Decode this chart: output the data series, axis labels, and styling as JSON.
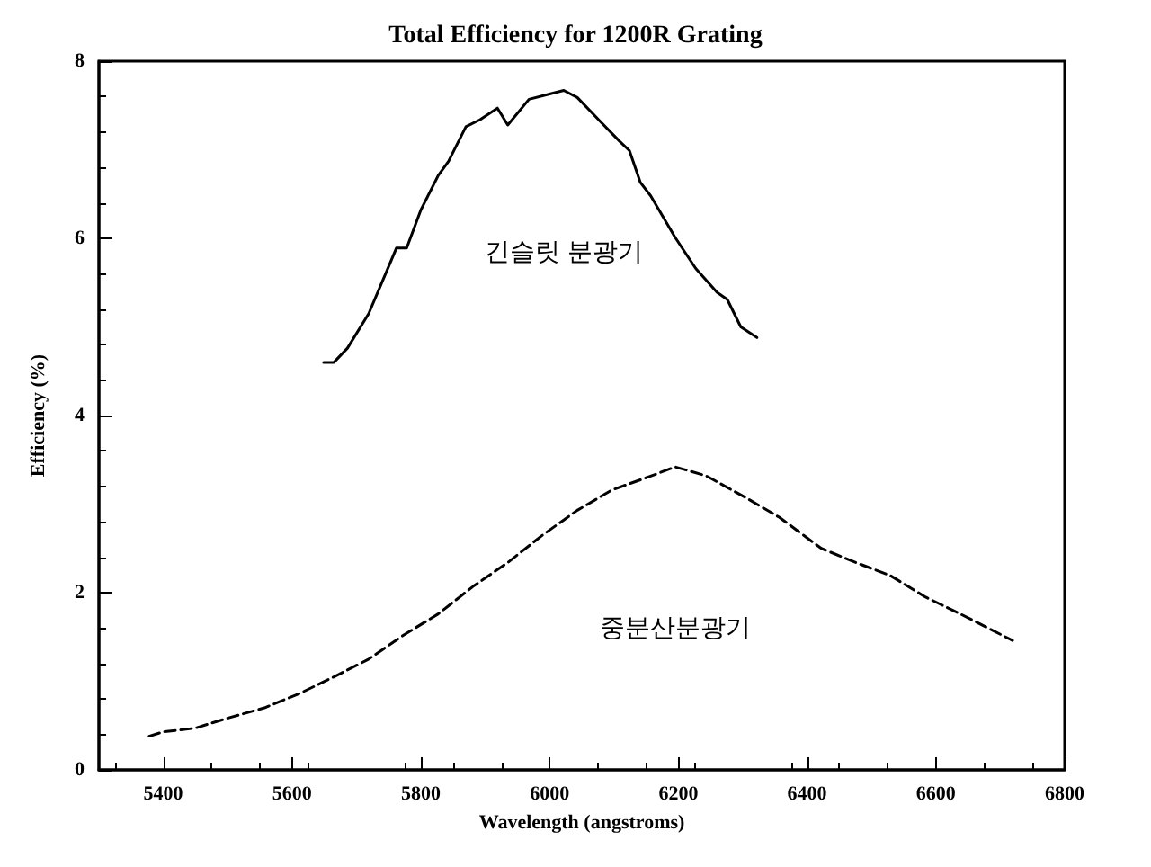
{
  "chart_data": {
    "type": "line",
    "title": "Total Efficiency for 1200R Grating",
    "xlabel": "Wavelength (angstroms)",
    "ylabel": "Efficiency (%)",
    "xlim": [
      5300,
      6800
    ],
    "xticks": [
      5400,
      5600,
      5800,
      6000,
      6200,
      6400,
      6600,
      6800
    ],
    "ylim": [
      0,
      8
    ],
    "yticks": [
      0,
      2,
      4,
      6,
      8
    ],
    "grid": false,
    "marker": "none",
    "series": [
      {
        "color": "#000000",
        "line_style": "solid",
        "x": [
          5649,
          5665,
          5686,
          5719,
          5751,
          5762,
          5778,
          5800,
          5827,
          5843,
          5870,
          5892,
          5919,
          5935,
          5968,
          6000,
          6022,
          6043,
          6076,
          6108,
          6124,
          6141,
          6157,
          6195,
          6227,
          6260,
          6276,
          6297,
          6322
        ],
        "values": [
          4.6,
          4.6,
          4.76,
          5.15,
          5.7,
          5.89,
          5.89,
          6.32,
          6.71,
          6.87,
          7.26,
          7.34,
          7.47,
          7.28,
          7.57,
          7.63,
          7.67,
          7.59,
          7.34,
          7.1,
          6.99,
          6.63,
          6.48,
          6.01,
          5.66,
          5.39,
          5.31,
          5.0,
          4.88
        ]
      },
      {
        "color": "#000000",
        "line_style": "dashed",
        "x": [
          5378,
          5400,
          5449,
          5503,
          5557,
          5611,
          5665,
          5719,
          5773,
          5827,
          5881,
          5935,
          5989,
          6043,
          6097,
          6151,
          6195,
          6243,
          6303,
          6357,
          6422,
          6476,
          6530,
          6584,
          6638,
          6719
        ],
        "values": [
          0.38,
          0.43,
          0.47,
          0.59,
          0.7,
          0.86,
          1.05,
          1.25,
          1.52,
          1.76,
          2.07,
          2.34,
          2.65,
          2.93,
          3.16,
          3.3,
          3.42,
          3.32,
          3.08,
          2.85,
          2.5,
          2.34,
          2.19,
          1.95,
          1.76,
          1.46
        ]
      }
    ],
    "annotations": [
      "긴슬릿 분광기",
      "중분산분광기"
    ]
  }
}
